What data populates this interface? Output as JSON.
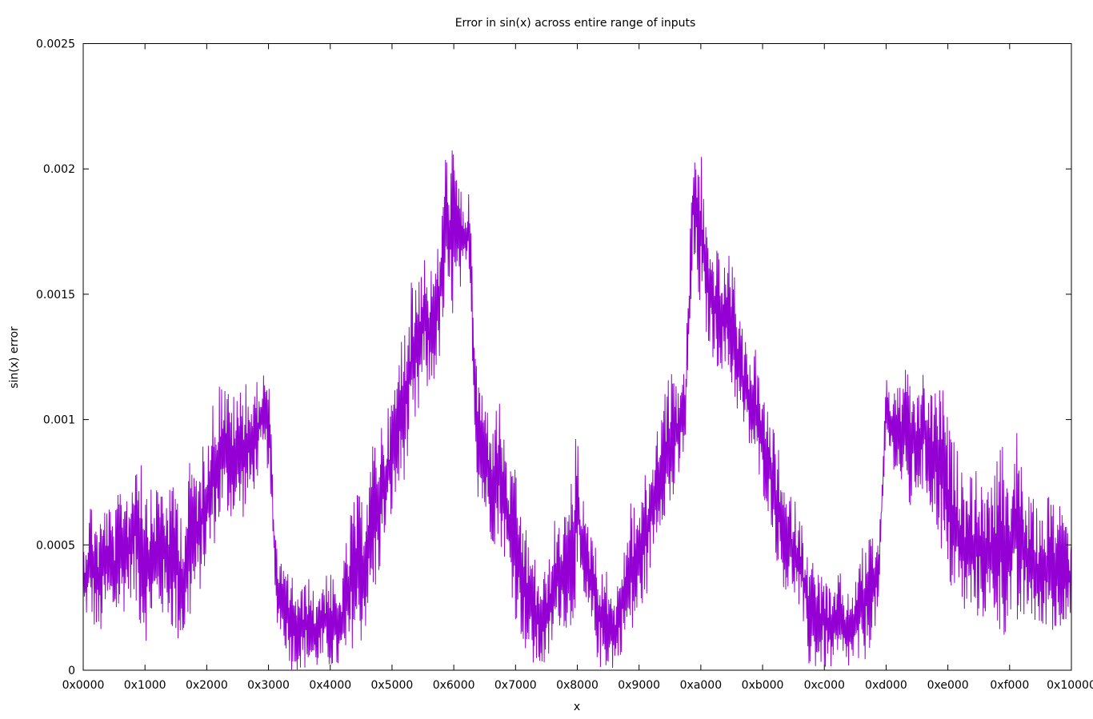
{
  "chart_data": {
    "type": "line",
    "title": "Error in sin(x) across entire range of inputs",
    "xlabel": "x",
    "ylabel": "sin(x) error",
    "xlim": [
      0,
      65536
    ],
    "ylim": [
      0,
      0.0025
    ],
    "grid": false,
    "legend": "none",
    "x_ticks": [
      {
        "value": 0,
        "label": "0x0000"
      },
      {
        "value": 4096,
        "label": "0x1000"
      },
      {
        "value": 8192,
        "label": "0x2000"
      },
      {
        "value": 12288,
        "label": "0x3000"
      },
      {
        "value": 16384,
        "label": "0x4000"
      },
      {
        "value": 20480,
        "label": "0x5000"
      },
      {
        "value": 24576,
        "label": "0x6000"
      },
      {
        "value": 28672,
        "label": "0x7000"
      },
      {
        "value": 32768,
        "label": "0x8000"
      },
      {
        "value": 36864,
        "label": "0x9000"
      },
      {
        "value": 40960,
        "label": "0xa000"
      },
      {
        "value": 45056,
        "label": "0xb000"
      },
      {
        "value": 49152,
        "label": "0xc000"
      },
      {
        "value": 53248,
        "label": "0xd000"
      },
      {
        "value": 57344,
        "label": "0xe000"
      },
      {
        "value": 61440,
        "label": "0xf000"
      },
      {
        "value": 65536,
        "label": "0x10000"
      }
    ],
    "y_ticks": [
      {
        "value": 0,
        "label": "0"
      },
      {
        "value": 0.0005,
        "label": "0.0005"
      },
      {
        "value": 0.001,
        "label": "0.001"
      },
      {
        "value": 0.0015,
        "label": "0.0015"
      },
      {
        "value": 0.002,
        "label": "0.002"
      },
      {
        "value": 0.0025,
        "label": "0.0025"
      }
    ],
    "series": [
      {
        "name": "sin(x) error",
        "color": "#9400d3",
        "x_step": 512,
        "value_multiplier": 0.0001,
        "envelope_lo_hi": [
          [
            2,
            5
          ],
          [
            2,
            7
          ],
          [
            1,
            6
          ],
          [
            2,
            7
          ],
          [
            2,
            6
          ],
          [
            2,
            8
          ],
          [
            3,
            7
          ],
          [
            2,
            10
          ],
          [
            1,
            8
          ],
          [
            2,
            7
          ],
          [
            2,
            8
          ],
          [
            2,
            7
          ],
          [
            1,
            8
          ],
          [
            1,
            6
          ],
          [
            2,
            9
          ],
          [
            3,
            8
          ],
          [
            4,
            10
          ],
          [
            5,
            11
          ],
          [
            6,
            12
          ],
          [
            6,
            11
          ],
          [
            6,
            11
          ],
          [
            6,
            12
          ],
          [
            7,
            11
          ],
          [
            8,
            12
          ],
          [
            8,
            12
          ],
          [
            2,
            5
          ],
          [
            1,
            4
          ],
          [
            0,
            4
          ],
          [
            0,
            3
          ],
          [
            0,
            4
          ],
          [
            0,
            3
          ],
          [
            0,
            4
          ],
          [
            0,
            4
          ],
          [
            0,
            3
          ],
          [
            0,
            5
          ],
          [
            1,
            7
          ],
          [
            1,
            7
          ],
          [
            2,
            8
          ],
          [
            3,
            10
          ],
          [
            5,
            10
          ],
          [
            6,
            11
          ],
          [
            7,
            13
          ],
          [
            8,
            15
          ],
          [
            9,
            16
          ],
          [
            11,
            17
          ],
          [
            11,
            16
          ],
          [
            12,
            17
          ],
          [
            14,
            21
          ],
          [
            14,
            21
          ],
          [
            15,
            19
          ],
          [
            16,
            19
          ],
          [
            7,
            12
          ],
          [
            6,
            11
          ],
          [
            5,
            10
          ],
          [
            5,
            11
          ],
          [
            4,
            8
          ],
          [
            2,
            8
          ],
          [
            1,
            6
          ],
          [
            0,
            5
          ],
          [
            0,
            4
          ],
          [
            0,
            4
          ],
          [
            1,
            6
          ],
          [
            2,
            6
          ],
          [
            1,
            7
          ],
          [
            3,
            10
          ],
          [
            2,
            6
          ],
          [
            1,
            6
          ],
          [
            0,
            4
          ],
          [
            0,
            4
          ],
          [
            0,
            3
          ],
          [
            1,
            5
          ],
          [
            1,
            7
          ],
          [
            2,
            7
          ],
          [
            3,
            8
          ],
          [
            5,
            9
          ],
          [
            6,
            11
          ],
          [
            6,
            12
          ],
          [
            7,
            12
          ],
          [
            9,
            12
          ],
          [
            16,
            21
          ],
          [
            14,
            21
          ],
          [
            13,
            17
          ],
          [
            12,
            17
          ],
          [
            12,
            16
          ],
          [
            11,
            17
          ],
          [
            10,
            14
          ],
          [
            9,
            13
          ],
          [
            8,
            13
          ],
          [
            7,
            11
          ],
          [
            6,
            10
          ],
          [
            4,
            9
          ],
          [
            3,
            7
          ],
          [
            3,
            7
          ],
          [
            2,
            6
          ],
          [
            0,
            5
          ],
          [
            0,
            4
          ],
          [
            0,
            4
          ],
          [
            0,
            3
          ],
          [
            0,
            4
          ],
          [
            0,
            3
          ],
          [
            0,
            4
          ],
          [
            0,
            5
          ],
          [
            1,
            6
          ],
          [
            2,
            5
          ],
          [
            9,
            12
          ],
          [
            8,
            11
          ],
          [
            7,
            12
          ],
          [
            6,
            12
          ],
          [
            7,
            11
          ],
          [
            7,
            12
          ],
          [
            6,
            11
          ],
          [
            5,
            12
          ],
          [
            3,
            10
          ],
          [
            3,
            9
          ],
          [
            2,
            8
          ],
          [
            2,
            8
          ],
          [
            2,
            8
          ],
          [
            2,
            7
          ],
          [
            2,
            8
          ],
          [
            1,
            9
          ],
          [
            2,
            8
          ],
          [
            1,
            10
          ],
          [
            2,
            7
          ],
          [
            2,
            7
          ],
          [
            1,
            6
          ],
          [
            2,
            7
          ],
          [
            1,
            7
          ],
          [
            2,
            7
          ],
          [
            2,
            5
          ]
        ]
      }
    ]
  }
}
